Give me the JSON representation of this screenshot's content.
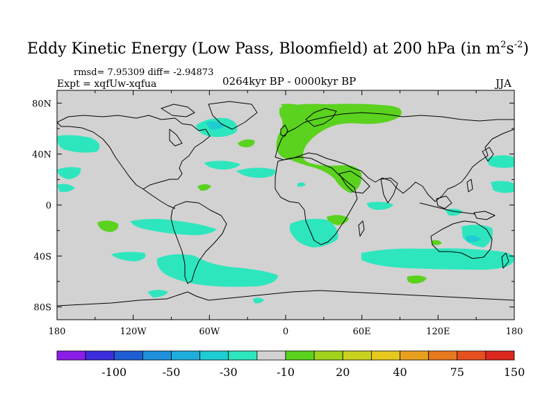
{
  "title": {
    "main": "Eddy Kinetic Energy (Low Pass, Bloomfield) at 200 hPa (in m",
    "sup1": "2",
    "mid": "s",
    "sup2": "-2",
    "end": ")"
  },
  "stats_line": "rmsd= 7.95309  diff= -2.94873",
  "experiment": "Expt = xqfUw-xqfua",
  "period": "0264kyr BP - 0000kyr BP",
  "season": "JJA",
  "axes": {
    "lat_ticks": [
      {
        "label": "80N",
        "value": 80
      },
      {
        "label": "40N",
        "value": 40
      },
      {
        "label": "0",
        "value": 0
      },
      {
        "label": "40S",
        "value": -40
      },
      {
        "label": "80S",
        "value": -80
      }
    ],
    "lon_ticks": [
      {
        "label": "180",
        "value": -180
      },
      {
        "label": "120W",
        "value": -120
      },
      {
        "label": "60W",
        "value": -60
      },
      {
        "label": "0",
        "value": 0
      },
      {
        "label": "60E",
        "value": 60
      },
      {
        "label": "120E",
        "value": 120
      },
      {
        "label": "180",
        "value": 180
      }
    ],
    "lon_range": [
      -180,
      180
    ],
    "lat_range": [
      -90,
      90
    ]
  },
  "colorbar": {
    "colors": [
      "#8a1ee6",
      "#3c2edc",
      "#1e5ed2",
      "#1e90dc",
      "#1eaedc",
      "#1ecdd2",
      "#2ee6be",
      "#d2d2d2",
      "#5ad21e",
      "#a0d21e",
      "#c8d21e",
      "#e6c81e",
      "#e6a01e",
      "#e6781e",
      "#e6501e",
      "#dc281e"
    ],
    "labels": [
      "-100",
      "-50",
      "-30",
      "-10",
      "20",
      "40",
      "75",
      "150"
    ]
  },
  "colors": {
    "background_field": "#d2d2d2",
    "coast": "#000000"
  }
}
